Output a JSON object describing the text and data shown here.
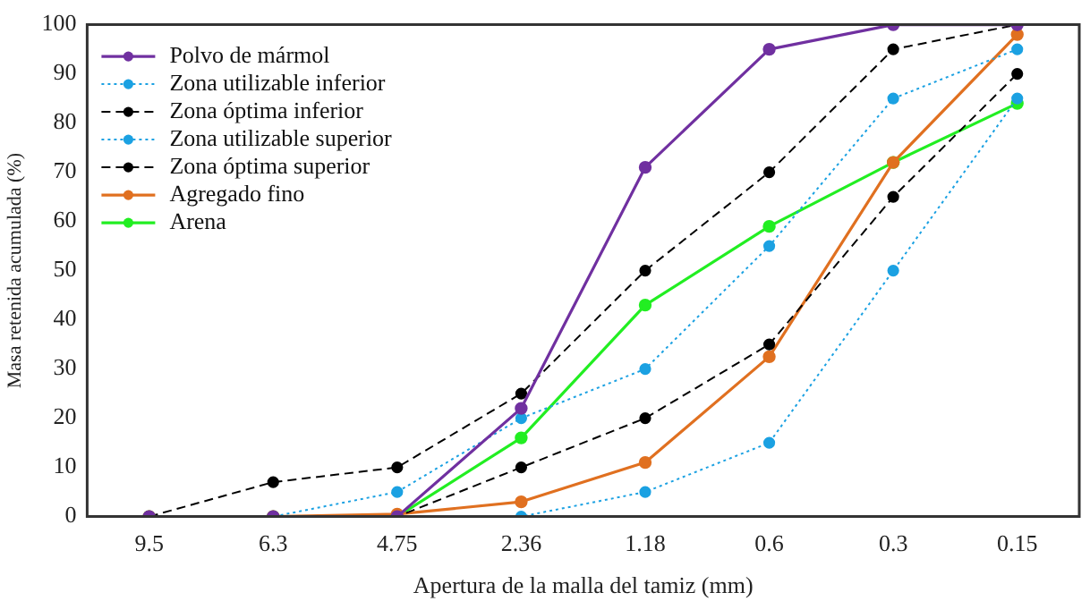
{
  "chart_data": {
    "type": "line",
    "xlabel": "Apertura de la malla del tamiz (mm)",
    "ylabel": "Masa retenida acumulada (%)",
    "categories": [
      "9.5",
      "6.3",
      "4.75",
      "2.36",
      "1.18",
      "0.6",
      "0.3",
      "0.15"
    ],
    "ylim": [
      0,
      100
    ],
    "yticks": [
      0,
      10,
      20,
      30,
      40,
      50,
      60,
      70,
      80,
      90,
      100
    ],
    "grid": false,
    "legend": "top left",
    "marker": "circle",
    "series": [
      {
        "name": "Polvo de mármol",
        "color": "#7030a0",
        "line_style": "solid",
        "values": [
          0,
          0,
          0,
          22,
          71,
          95,
          100,
          100
        ]
      },
      {
        "name": "Zona utilizable inferior",
        "color": "#1ba1e2",
        "line_style": "dotted",
        "values": [
          0,
          0,
          0,
          0,
          5,
          15,
          50,
          85
        ]
      },
      {
        "name": "Zona óptima inferior",
        "color": "#000000",
        "line_style": "dashed",
        "values": [
          0,
          0,
          0,
          10,
          20,
          35,
          65,
          90
        ]
      },
      {
        "name": "Zona utilizable superior",
        "color": "#1ba1e2",
        "line_style": "dotted",
        "values": [
          0,
          0,
          5,
          20,
          30,
          55,
          85,
          95
        ]
      },
      {
        "name": "Zona óptima superior",
        "color": "#000000",
        "line_style": "dashed",
        "values": [
          0,
          7,
          10,
          25,
          50,
          70,
          95,
          100
        ]
      },
      {
        "name": "Agregado fino",
        "color": "#e07020",
        "line_style": "solid",
        "values": [
          0,
          0,
          0.5,
          3,
          11,
          32.5,
          72,
          98
        ]
      },
      {
        "name": "Arena",
        "color": "#22ee22",
        "line_style": "solid",
        "values": [
          0,
          0,
          0,
          16,
          43,
          59,
          72,
          84
        ]
      }
    ]
  }
}
